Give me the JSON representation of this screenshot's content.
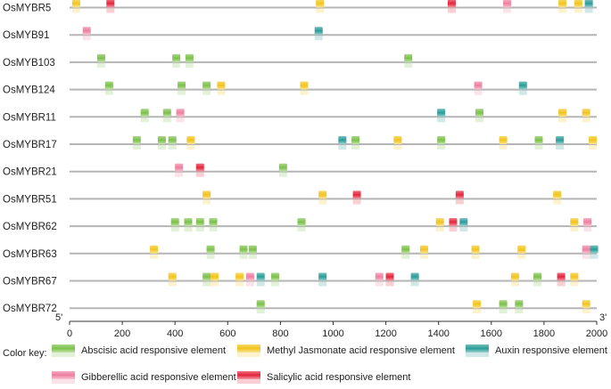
{
  "chart_data": {
    "type": "diagram",
    "title": "",
    "axis": {
      "min": 0,
      "max": 2000,
      "ticks": [
        0,
        200,
        400,
        600,
        800,
        1000,
        1200,
        1400,
        1600,
        1800,
        2000
      ]
    },
    "end_labels": {
      "left": "5'",
      "right": "3'"
    },
    "color_key_label": "Color key:",
    "element_types": [
      {
        "id": "ABA",
        "name": "Abscisic acid responsive element",
        "color": "#7cc04a"
      },
      {
        "id": "MeJA",
        "name": "Methyl Jasmonate acid responsive element",
        "color": "#f2c41c"
      },
      {
        "id": "Auxin",
        "name": "Auxin responsive element",
        "color": "#2a9c98"
      },
      {
        "id": "GA",
        "name": "Gibberellic acid responsive element",
        "color": "#ee7fa0"
      },
      {
        "id": "SA",
        "name": "Salicylic acid responsive element",
        "color": "#e4243c"
      }
    ],
    "genes": [
      {
        "name": "OsMYBR5",
        "elements": [
          {
            "pos": 25,
            "type": "MeJA"
          },
          {
            "pos": 155,
            "type": "SA"
          },
          {
            "pos": 950,
            "type": "MeJA"
          },
          {
            "pos": 1450,
            "type": "SA"
          },
          {
            "pos": 1660,
            "type": "GA"
          },
          {
            "pos": 1870,
            "type": "MeJA"
          },
          {
            "pos": 1930,
            "type": "MeJA"
          },
          {
            "pos": 1970,
            "type": "Auxin"
          }
        ]
      },
      {
        "name": "OsMYB91",
        "elements": [
          {
            "pos": 65,
            "type": "GA"
          },
          {
            "pos": 945,
            "type": "Auxin"
          }
        ]
      },
      {
        "name": "OsMYB103",
        "elements": [
          {
            "pos": 120,
            "type": "ABA"
          },
          {
            "pos": 405,
            "type": "ABA"
          },
          {
            "pos": 455,
            "type": "ABA"
          },
          {
            "pos": 1285,
            "type": "ABA"
          }
        ]
      },
      {
        "name": "OsMYB124",
        "elements": [
          {
            "pos": 150,
            "type": "ABA"
          },
          {
            "pos": 425,
            "type": "ABA"
          },
          {
            "pos": 520,
            "type": "ABA"
          },
          {
            "pos": 575,
            "type": "MeJA"
          },
          {
            "pos": 890,
            "type": "MeJA"
          },
          {
            "pos": 1550,
            "type": "GA"
          },
          {
            "pos": 1720,
            "type": "Auxin"
          }
        ]
      },
      {
        "name": "OsMYBR11",
        "elements": [
          {
            "pos": 285,
            "type": "ABA"
          },
          {
            "pos": 370,
            "type": "ABA"
          },
          {
            "pos": 420,
            "type": "GA"
          },
          {
            "pos": 1410,
            "type": "Auxin"
          },
          {
            "pos": 1555,
            "type": "ABA"
          },
          {
            "pos": 1870,
            "type": "MeJA"
          },
          {
            "pos": 1960,
            "type": "MeJA"
          }
        ]
      },
      {
        "name": "OsMYBR17",
        "elements": [
          {
            "pos": 255,
            "type": "ABA"
          },
          {
            "pos": 350,
            "type": "ABA"
          },
          {
            "pos": 390,
            "type": "ABA"
          },
          {
            "pos": 460,
            "type": "MeJA"
          },
          {
            "pos": 1035,
            "type": "Auxin"
          },
          {
            "pos": 1085,
            "type": "ABA"
          },
          {
            "pos": 1245,
            "type": "MeJA"
          },
          {
            "pos": 1410,
            "type": "ABA"
          },
          {
            "pos": 1645,
            "type": "MeJA"
          },
          {
            "pos": 1780,
            "type": "ABA"
          },
          {
            "pos": 1860,
            "type": "Auxin"
          },
          {
            "pos": 1985,
            "type": "MeJA"
          }
        ]
      },
      {
        "name": "OsMYBR21",
        "elements": [
          {
            "pos": 415,
            "type": "GA"
          },
          {
            "pos": 495,
            "type": "SA"
          },
          {
            "pos": 810,
            "type": "ABA"
          }
        ]
      },
      {
        "name": "OsMYBR51",
        "elements": [
          {
            "pos": 520,
            "type": "MeJA"
          },
          {
            "pos": 960,
            "type": "MeJA"
          },
          {
            "pos": 1090,
            "type": "SA"
          },
          {
            "pos": 1480,
            "type": "SA"
          },
          {
            "pos": 1850,
            "type": "MeJA"
          }
        ]
      },
      {
        "name": "OsMYBR62",
        "elements": [
          {
            "pos": 400,
            "type": "ABA"
          },
          {
            "pos": 450,
            "type": "ABA"
          },
          {
            "pos": 495,
            "type": "ABA"
          },
          {
            "pos": 545,
            "type": "ABA"
          },
          {
            "pos": 880,
            "type": "ABA"
          },
          {
            "pos": 1405,
            "type": "MeJA"
          },
          {
            "pos": 1455,
            "type": "SA"
          },
          {
            "pos": 1495,
            "type": "Auxin"
          },
          {
            "pos": 1915,
            "type": "MeJA"
          },
          {
            "pos": 1965,
            "type": "GA"
          }
        ]
      },
      {
        "name": "OsMYBR63",
        "elements": [
          {
            "pos": 320,
            "type": "MeJA"
          },
          {
            "pos": 535,
            "type": "ABA"
          },
          {
            "pos": 660,
            "type": "ABA"
          },
          {
            "pos": 695,
            "type": "ABA"
          },
          {
            "pos": 1275,
            "type": "ABA"
          },
          {
            "pos": 1345,
            "type": "MeJA"
          },
          {
            "pos": 1540,
            "type": "MeJA"
          },
          {
            "pos": 1715,
            "type": "MeJA"
          },
          {
            "pos": 1960,
            "type": "GA"
          },
          {
            "pos": 1990,
            "type": "Auxin"
          }
        ]
      },
      {
        "name": "OsMYBR67",
        "elements": [
          {
            "pos": 390,
            "type": "MeJA"
          },
          {
            "pos": 520,
            "type": "ABA"
          },
          {
            "pos": 550,
            "type": "MeJA"
          },
          {
            "pos": 645,
            "type": "MeJA"
          },
          {
            "pos": 685,
            "type": "GA"
          },
          {
            "pos": 725,
            "type": "Auxin"
          },
          {
            "pos": 780,
            "type": "ABA"
          },
          {
            "pos": 960,
            "type": "Auxin"
          },
          {
            "pos": 1175,
            "type": "GA"
          },
          {
            "pos": 1215,
            "type": "SA"
          },
          {
            "pos": 1310,
            "type": "Auxin"
          },
          {
            "pos": 1690,
            "type": "MeJA"
          },
          {
            "pos": 1775,
            "type": "ABA"
          },
          {
            "pos": 1865,
            "type": "SA"
          },
          {
            "pos": 1915,
            "type": "MeJA"
          }
        ]
      },
      {
        "name": "OsMYBR72",
        "elements": [
          {
            "pos": 725,
            "type": "ABA"
          },
          {
            "pos": 1545,
            "type": "MeJA"
          },
          {
            "pos": 1645,
            "type": "ABA"
          },
          {
            "pos": 1705,
            "type": "ABA"
          },
          {
            "pos": 1960,
            "type": "MeJA"
          }
        ]
      }
    ]
  }
}
